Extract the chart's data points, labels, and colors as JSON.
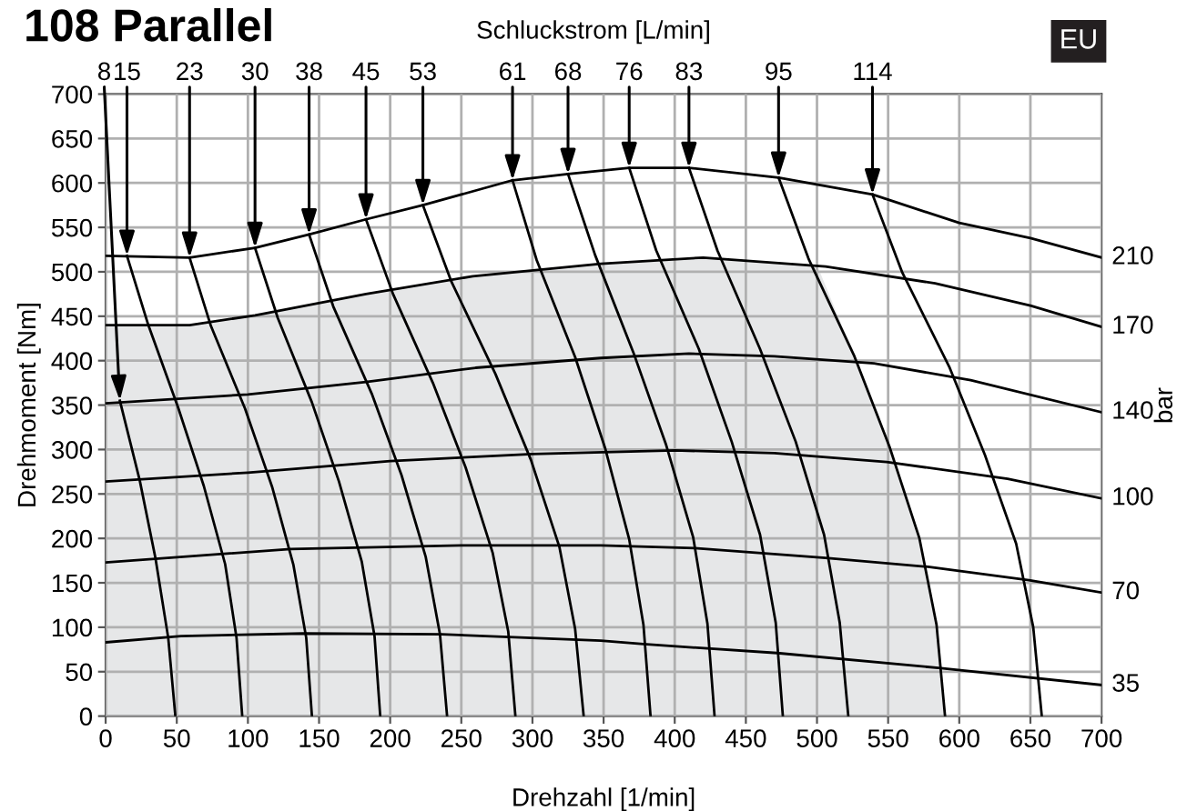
{
  "chart_data": {
    "type": "line",
    "title": "108 Parallel",
    "subtitle": "Schluckstrom [L/min]",
    "xlabel": "Drehzahl [1/min]",
    "ylabel": "Drehmoment [Nm]",
    "y2label": "bar",
    "annotations": [
      "EU"
    ],
    "xlim": [
      0,
      700
    ],
    "ylim": [
      0,
      700
    ],
    "xticks": [
      0,
      50,
      100,
      150,
      200,
      250,
      300,
      350,
      400,
      450,
      500,
      550,
      600,
      650,
      700
    ],
    "yticks": [
      0,
      50,
      100,
      150,
      200,
      250,
      300,
      350,
      400,
      450,
      500,
      550,
      600,
      650,
      700
    ],
    "grid": true,
    "legend": false,
    "marker": "none",
    "line_style": "solid",
    "series": [
      {
        "type": "area",
        "color": "#e6e7e8",
        "x": [
          0,
          59,
          105,
          183,
          258,
          348,
          420,
          500,
          526,
          551,
          572,
          584,
          590
        ],
        "values": [
          440,
          440,
          451,
          475,
          495,
          509,
          516,
          508,
          406,
          303,
          200,
          103,
          0
        ]
      },
      {
        "name": "210",
        "color": "#000000",
        "x": [
          0,
          59,
          105,
          143,
          183,
          223,
          286,
          325,
          368,
          410,
          473,
          539,
          600,
          650,
          700
        ],
        "values": [
          518,
          516,
          527,
          542,
          559,
          575,
          603,
          610,
          617,
          617,
          606,
          587,
          555,
          538,
          516
        ]
      },
      {
        "name": "170",
        "color": "#000000",
        "x": [
          0,
          59,
          105,
          183,
          258,
          348,
          420,
          506,
          583,
          650,
          700
        ],
        "values": [
          440,
          440,
          451,
          475,
          495,
          509,
          516,
          506,
          487,
          462,
          438
        ]
      },
      {
        "name": "140",
        "color": "#000000",
        "x": [
          0,
          100,
          183,
          260,
          348,
          410,
          470,
          540,
          608,
          700
        ],
        "values": [
          352,
          362,
          376,
          392,
          403,
          408,
          405,
          397,
          378,
          342
        ]
      },
      {
        "name": "100",
        "color": "#000000",
        "x": [
          0,
          100,
          200,
          300,
          400,
          470,
          549,
          634,
          700
        ],
        "values": [
          264,
          274,
          287,
          295,
          299,
          296,
          286,
          267,
          245
        ]
      },
      {
        "name": "70",
        "color": "#000000",
        "x": [
          0,
          130,
          250,
          348,
          414,
          506,
          578,
          649,
          700
        ],
        "values": [
          173,
          188,
          192,
          192,
          189,
          178,
          168,
          153,
          139
        ]
      },
      {
        "name": "35",
        "color": "#000000",
        "x": [
          0,
          53,
          139,
          236,
          348,
          378,
          472,
          587,
          700
        ],
        "values": [
          83,
          90,
          93,
          92,
          85,
          81,
          71,
          54,
          35
        ]
      },
      {
        "name": "8",
        "color": "#000000",
        "x": [
          10,
          24,
          35,
          44,
          49
        ],
        "values": [
          355,
          265,
          178,
          88,
          0
        ]
      },
      {
        "name": "15",
        "color": "#000000",
        "x": [
          15,
          30,
          51,
          69,
          84,
          92,
          96
        ],
        "values": [
          518,
          440,
          347,
          259,
          171,
          88,
          0
        ]
      },
      {
        "name": "23",
        "color": "#000000",
        "x": [
          59,
          74,
          98,
          117,
          132,
          141,
          145
        ],
        "values": [
          516,
          439,
          346,
          258,
          170,
          88,
          0
        ]
      },
      {
        "name": "30",
        "color": "#000000",
        "x": [
          105,
          121,
          145,
          164,
          180,
          189,
          193
        ],
        "values": [
          527,
          448,
          353,
          264,
          174,
          90,
          0
        ]
      },
      {
        "name": "38",
        "color": "#000000",
        "x": [
          143,
          160,
          187,
          208,
          225,
          235,
          240
        ],
        "values": [
          542,
          461,
          363,
          271,
          179,
          92,
          0
        ]
      },
      {
        "name": "45",
        "color": "#000000",
        "x": [
          183,
          202,
          230,
          253,
          272,
          283,
          288
        ],
        "values": [
          559,
          475,
          375,
          280,
          184,
          95,
          0
        ]
      },
      {
        "name": "53",
        "color": "#000000",
        "x": [
          223,
          243,
          274,
          299,
          319,
          330,
          336
        ],
        "values": [
          575,
          489,
          385,
          288,
          190,
          98,
          0
        ]
      },
      {
        "name": "61",
        "color": "#000000",
        "x": [
          286,
          303,
          330,
          351,
          368,
          378,
          383
        ],
        "values": [
          603,
          513,
          404,
          302,
          199,
          103,
          0
        ]
      },
      {
        "name": "68",
        "color": "#000000",
        "x": [
          325,
          344,
          371,
          394,
          413,
          423,
          428
        ],
        "values": [
          610,
          519,
          409,
          305,
          201,
          104,
          0
        ]
      },
      {
        "name": "76",
        "color": "#000000",
        "x": [
          368,
          387,
          417,
          440,
          460,
          471,
          476
        ],
        "values": [
          617,
          524,
          413,
          309,
          204,
          105,
          0
        ]
      },
      {
        "name": "83",
        "color": "#000000",
        "x": [
          410,
          430,
          460,
          485,
          505,
          516,
          522
        ],
        "values": [
          617,
          524,
          413,
          309,
          204,
          105,
          0
        ]
      },
      {
        "name": "95",
        "color": "#000000",
        "x": [
          473,
          494,
          526,
          551,
          572,
          584,
          590
        ],
        "values": [
          606,
          515,
          406,
          303,
          200,
          103,
          0
        ]
      },
      {
        "name": "114",
        "color": "#000000",
        "x": [
          539,
          560,
          593,
          618,
          640,
          652,
          658
        ],
        "values": [
          587,
          499,
          393,
          294,
          194,
          100,
          0
        ]
      }
    ]
  }
}
